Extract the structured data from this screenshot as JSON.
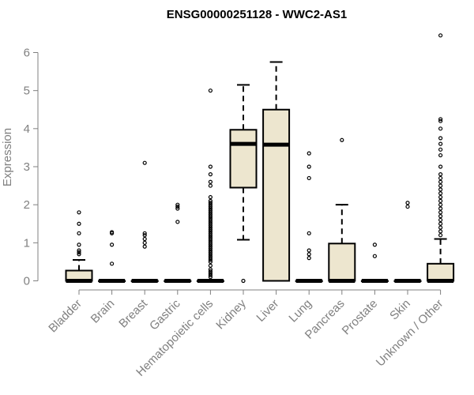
{
  "chart_data": {
    "type": "boxplot",
    "title": "ENSG00000251128 - WWC2-AS1",
    "xlabel": "",
    "ylabel": "Expression",
    "ylim": [
      0,
      6.5
    ],
    "yticks": [
      0,
      1,
      2,
      3,
      4,
      5,
      6
    ],
    "box_fill": "#ede6cf",
    "categories": [
      "Bladder",
      "Brain",
      "Breast",
      "Gastric",
      "Hematopoietic cells",
      "Kidney",
      "Liver",
      "Lung",
      "Pancreas",
      "Prostate",
      "Skin",
      "Unknown / Other"
    ],
    "boxes": [
      {
        "category": "Bladder",
        "whisker_low": 0,
        "q1": 0,
        "median": 0,
        "q3": 0.27,
        "whisker_high": 0.55,
        "outliers": [
          0.7,
          0.75,
          0.8,
          0.95,
          1.25,
          1.5,
          1.8
        ]
      },
      {
        "category": "Brain",
        "whisker_low": 0,
        "q1": 0,
        "median": 0,
        "q3": 0,
        "whisker_high": 0,
        "outliers": [
          0.45,
          0.95,
          1.25,
          1.28
        ]
      },
      {
        "category": "Breast",
        "whisker_low": 0,
        "q1": 0,
        "median": 0,
        "q3": 0,
        "whisker_high": 0,
        "outliers": [
          0.9,
          1.0,
          1.1,
          1.2,
          1.25,
          3.1
        ]
      },
      {
        "category": "Gastric",
        "whisker_low": 0,
        "q1": 0,
        "median": 0,
        "q3": 0,
        "whisker_high": 0,
        "outliers": [
          1.55,
          1.9,
          1.95,
          2.0
        ]
      },
      {
        "category": "Hematopoietic cells",
        "whisker_low": 0,
        "q1": 0,
        "median": 0,
        "q3": 0,
        "whisker_high": 0,
        "outliers": [
          0.1,
          0.15,
          0.2,
          0.25,
          0.3,
          0.4,
          0.5,
          0.55,
          0.6,
          0.65,
          0.7,
          0.75,
          0.8,
          0.85,
          0.9,
          0.95,
          1.0,
          1.05,
          1.1,
          1.15,
          1.2,
          1.25,
          1.3,
          1.35,
          1.4,
          1.45,
          1.5,
          1.55,
          1.6,
          1.65,
          1.7,
          1.75,
          1.8,
          1.85,
          1.9,
          1.95,
          2.0,
          2.05,
          2.1,
          2.2,
          2.5,
          2.6,
          2.8,
          3.0,
          5.0
        ]
      },
      {
        "category": "Kidney",
        "whisker_low": 1.08,
        "q1": 2.45,
        "median": 3.6,
        "q3": 3.97,
        "whisker_high": 5.15,
        "outliers": [
          0.0
        ]
      },
      {
        "category": "Liver",
        "whisker_low": 0,
        "q1": 0,
        "median": 3.58,
        "q3": 4.5,
        "whisker_high": 5.75,
        "outliers": []
      },
      {
        "category": "Lung",
        "whisker_low": 0,
        "q1": 0,
        "median": 0,
        "q3": 0,
        "whisker_high": 0,
        "outliers": [
          0.6,
          0.7,
          0.8,
          1.25,
          2.7,
          3.0,
          3.35
        ]
      },
      {
        "category": "Pancreas",
        "whisker_low": 0,
        "q1": 0,
        "median": 0,
        "q3": 0.98,
        "whisker_high": 2.0,
        "outliers": [
          3.7
        ]
      },
      {
        "category": "Prostate",
        "whisker_low": 0,
        "q1": 0,
        "median": 0,
        "q3": 0,
        "whisker_high": 0,
        "outliers": [
          0.65,
          0.95
        ]
      },
      {
        "category": "Skin",
        "whisker_low": 0,
        "q1": 0,
        "median": 0,
        "q3": 0,
        "whisker_high": 0,
        "outliers": [
          1.95,
          2.05
        ]
      },
      {
        "category": "Unknown / Other",
        "whisker_low": 0,
        "q1": 0,
        "median": 0,
        "q3": 0.45,
        "whisker_high": 1.1,
        "outliers": [
          1.2,
          1.3,
          1.4,
          1.5,
          1.6,
          1.7,
          1.8,
          1.9,
          2.0,
          2.1,
          2.2,
          2.3,
          2.4,
          2.5,
          2.6,
          2.7,
          2.8,
          3.0,
          3.3,
          3.45,
          3.6,
          3.75,
          4.0,
          4.2,
          4.25,
          6.45
        ]
      }
    ]
  }
}
